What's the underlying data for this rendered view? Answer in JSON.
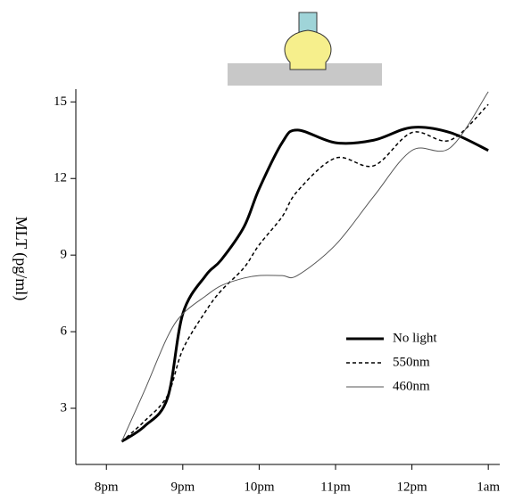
{
  "chart_data": {
    "type": "line",
    "y_label": "MLT (pg/ml)",
    "x": [
      20.2,
      20.5,
      20.8,
      21,
      21.3,
      21.5,
      21.8,
      22,
      22.3,
      22.5,
      23,
      23.5,
      24,
      24.5,
      25
    ],
    "series": [
      {
        "name": "No light",
        "color": "#000000",
        "style": "solid",
        "width": 3,
        "values": [
          1.7,
          2.3,
          3.4,
          6.7,
          8.2,
          8.8,
          10.1,
          11.6,
          13.4,
          13.9,
          13.4,
          13.5,
          14.0,
          13.8,
          13.1
        ]
      },
      {
        "name": "550nm",
        "color": "#000000",
        "style": "dashed",
        "width": 1.5,
        "values": [
          1.7,
          2.5,
          3.5,
          5.3,
          6.8,
          7.6,
          8.5,
          9.4,
          10.5,
          11.5,
          12.8,
          12.5,
          13.8,
          13.5,
          14.9
        ]
      },
      {
        "name": "460nm",
        "color": "#555555",
        "style": "solid",
        "width": 1,
        "values": [
          1.7,
          3.7,
          5.8,
          6.7,
          7.4,
          7.8,
          8.1,
          8.2,
          8.2,
          8.2,
          9.4,
          11.3,
          13.1,
          13.2,
          15.4
        ]
      }
    ],
    "xlim": [
      19.6,
      25.15
    ],
    "xticks": [
      {
        "value": 20,
        "label": "8pm"
      },
      {
        "value": 21,
        "label": "9pm"
      },
      {
        "value": 22,
        "label": "10pm"
      },
      {
        "value": 23,
        "label": "11pm"
      },
      {
        "value": 24,
        "label": "12pm"
      },
      {
        "value": 25,
        "label": "1am"
      }
    ],
    "ylim": [
      0.8,
      15.5
    ],
    "yticks": [
      3,
      6,
      9,
      12,
      15
    ],
    "grid": false,
    "legend": "lower right"
  }
}
